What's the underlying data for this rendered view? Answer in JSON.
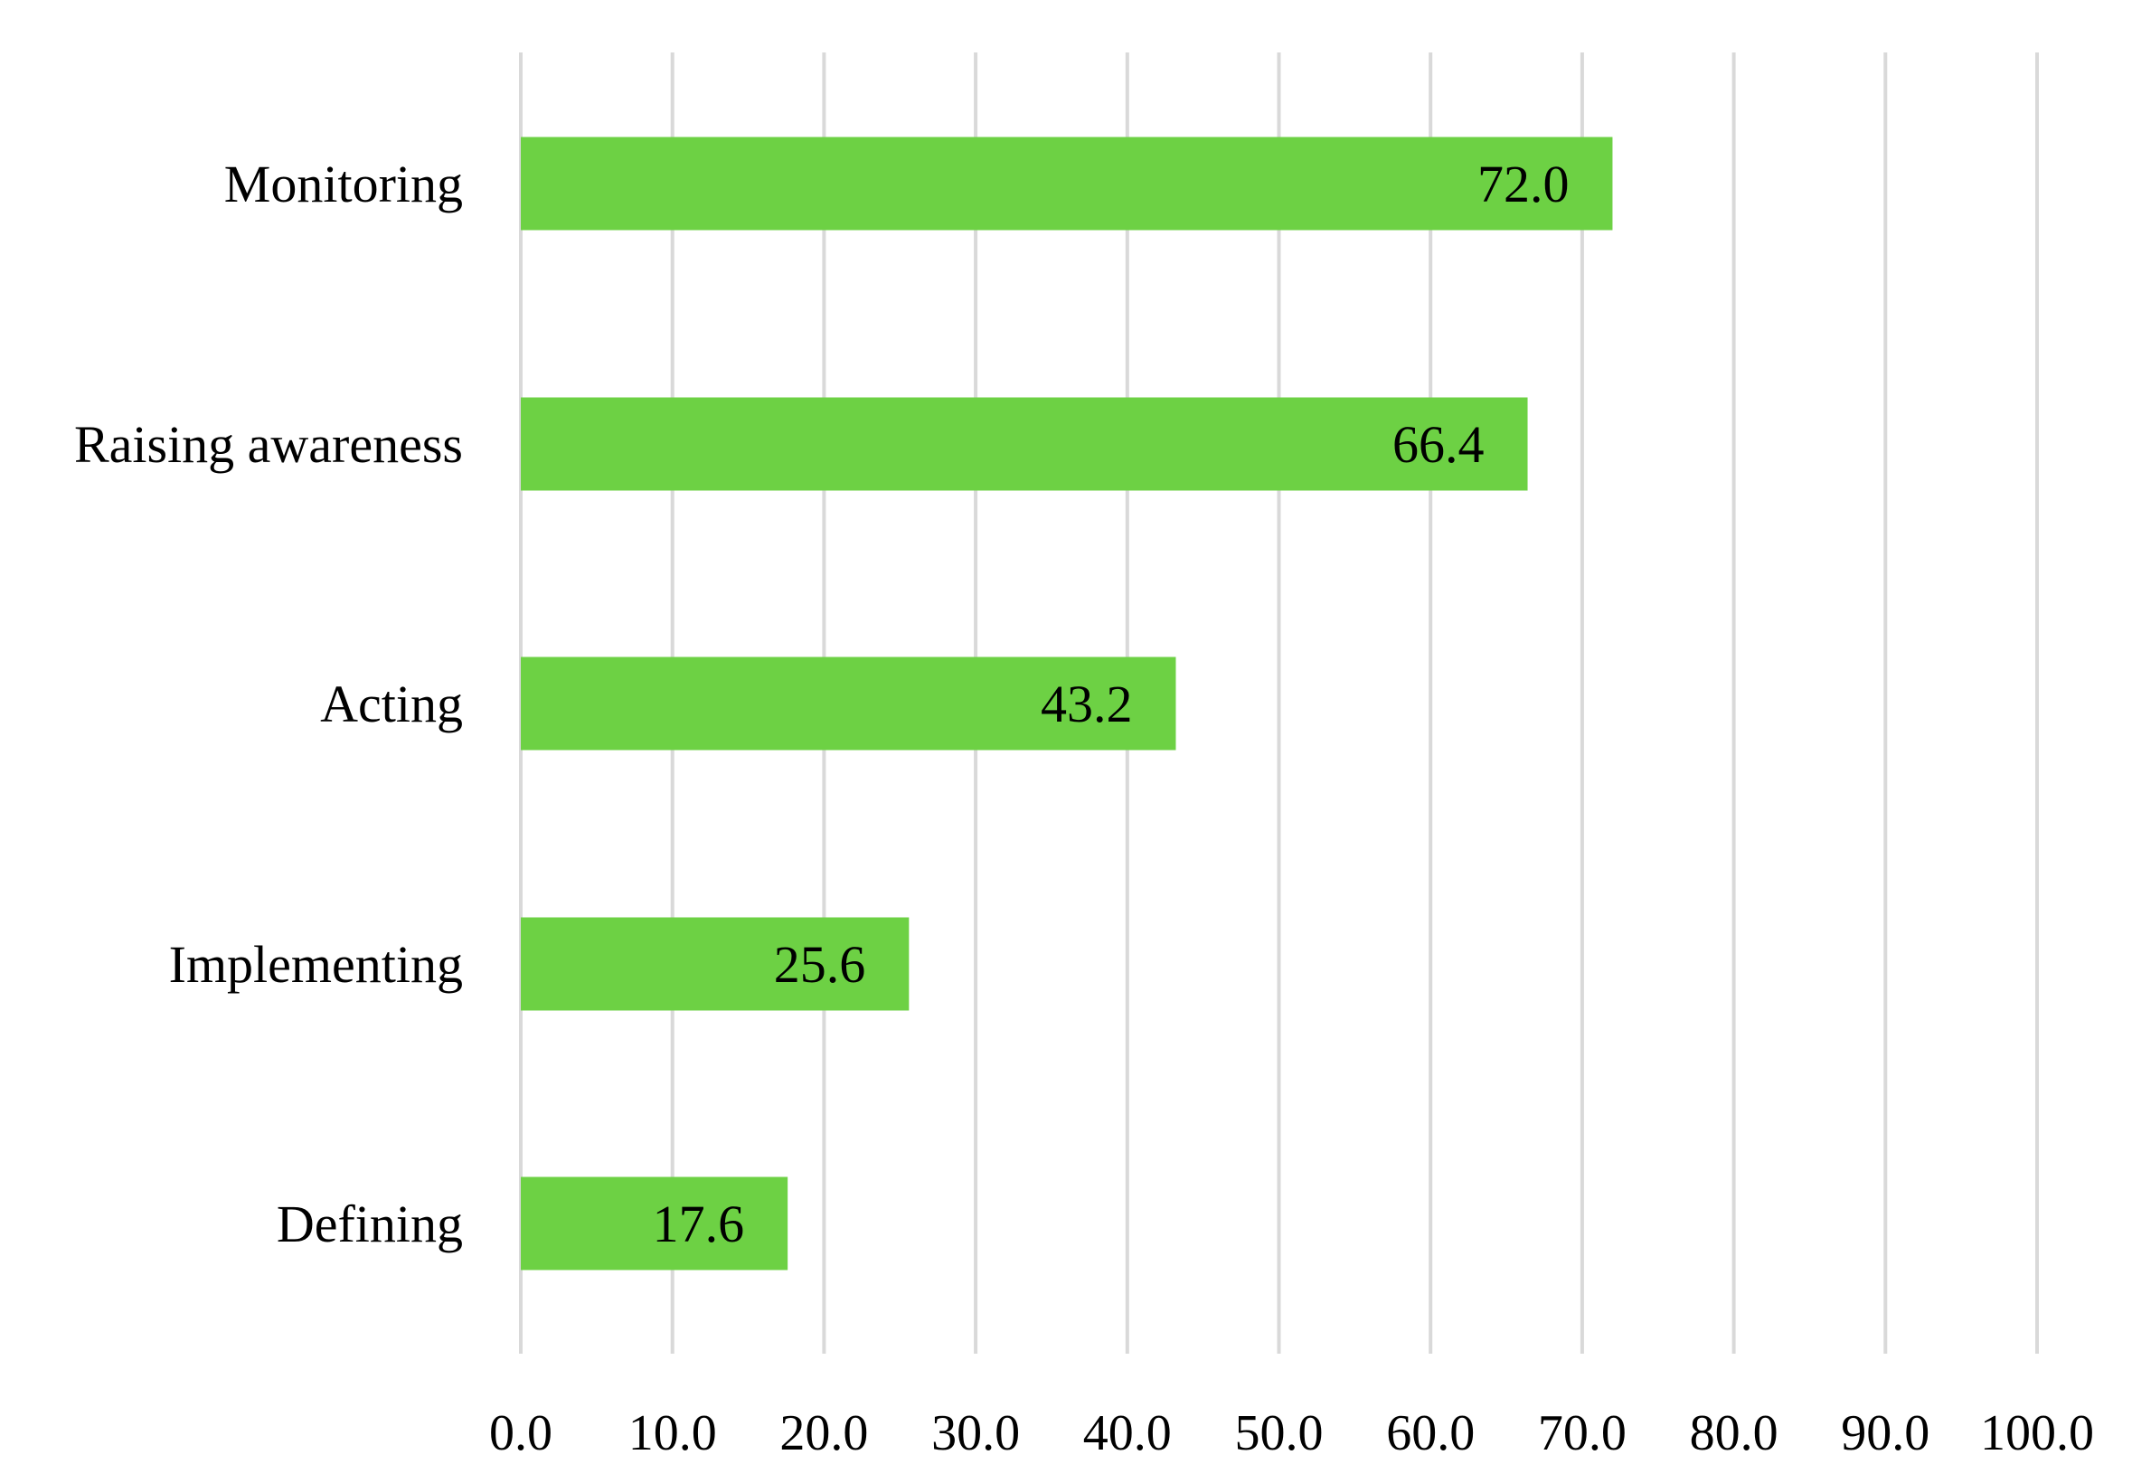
{
  "chart_data": {
    "type": "bar",
    "orientation": "horizontal",
    "categories": [
      "Monitoring",
      "Raising awareness",
      "Acting",
      "Implementing",
      "Defining"
    ],
    "values": [
      72.0,
      66.4,
      43.2,
      25.6,
      17.6
    ],
    "value_labels": [
      "72.0",
      "66.4",
      "43.2",
      "25.6",
      "17.6"
    ],
    "xlim": [
      0,
      100
    ],
    "xticks": [
      "0.0",
      "10.0",
      "20.0",
      "30.0",
      "40.0",
      "50.0",
      "60.0",
      "70.0",
      "80.0",
      "90.0",
      "100.0"
    ],
    "grid": "vertical",
    "bar_color": "#6dd144",
    "grid_color": "#d9d9d9",
    "title": "",
    "xlabel": "",
    "ylabel": ""
  }
}
